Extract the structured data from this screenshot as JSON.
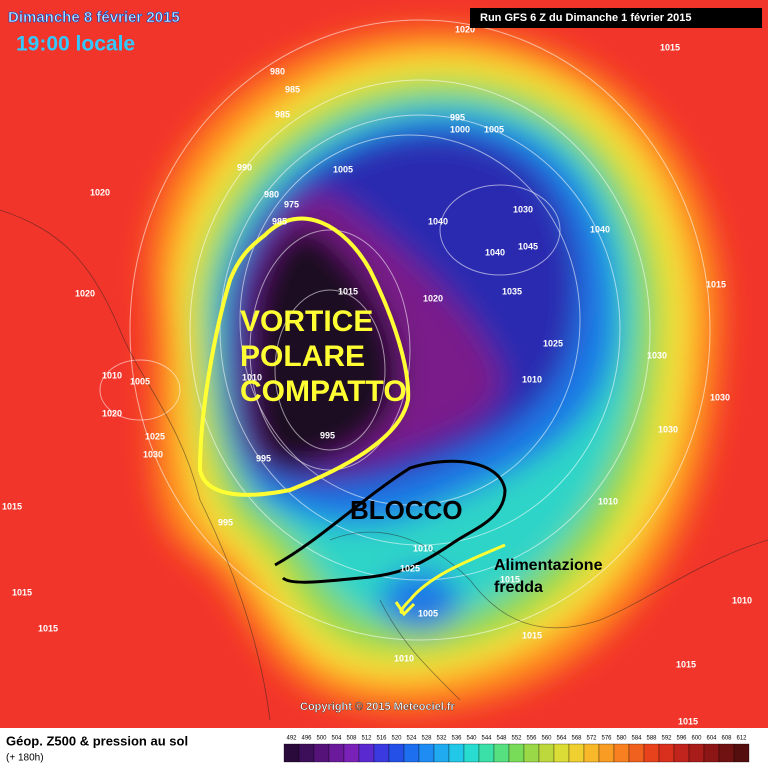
{
  "header": {
    "date": "Dimanche 8 février 2015",
    "time": "19:00 locale",
    "run": "Run GFS 6 Z du Dimanche 1 février 2015"
  },
  "annotations": {
    "vortex": [
      "VORTICE",
      "POLARE",
      "COMPATTO"
    ],
    "block": "BLOCCO",
    "feed": [
      "Alimentazione",
      "fredda"
    ]
  },
  "isobar_labels": [
    "1020",
    "1015",
    "980",
    "985",
    "985",
    "995",
    "1000",
    "1005",
    "990",
    "1005",
    "980",
    "975",
    "985",
    "1020",
    "1040",
    "1030",
    "1040",
    "1045",
    "1040",
    "1015",
    "1035",
    "1020",
    "1015",
    "1020",
    "1025",
    "1030",
    "1010",
    "1030",
    "1010",
    "1005",
    "1020",
    "1025",
    "1030",
    "1030",
    "1010",
    "995",
    "995",
    "995",
    "1015",
    "1010",
    "1025",
    "1005",
    "1010",
    "1015",
    "1015",
    "1015",
    "1010",
    "1010",
    "1015",
    "1015",
    "1015"
  ],
  "footer": {
    "title": "Géop. Z500 & pression au sol",
    "lead": "(+ 180h)",
    "copyright": "Copyright © 2015 Meteociel.fr"
  },
  "legend": {
    "levels": [
      "492",
      "496",
      "500",
      "504",
      "508",
      "512",
      "516",
      "520",
      "524",
      "528",
      "532",
      "536",
      "540",
      "544",
      "548",
      "552",
      "556",
      "560",
      "564",
      "568",
      "572",
      "576",
      "580",
      "584",
      "588",
      "592",
      "596",
      "600",
      "604",
      "608",
      "612"
    ]
  }
}
